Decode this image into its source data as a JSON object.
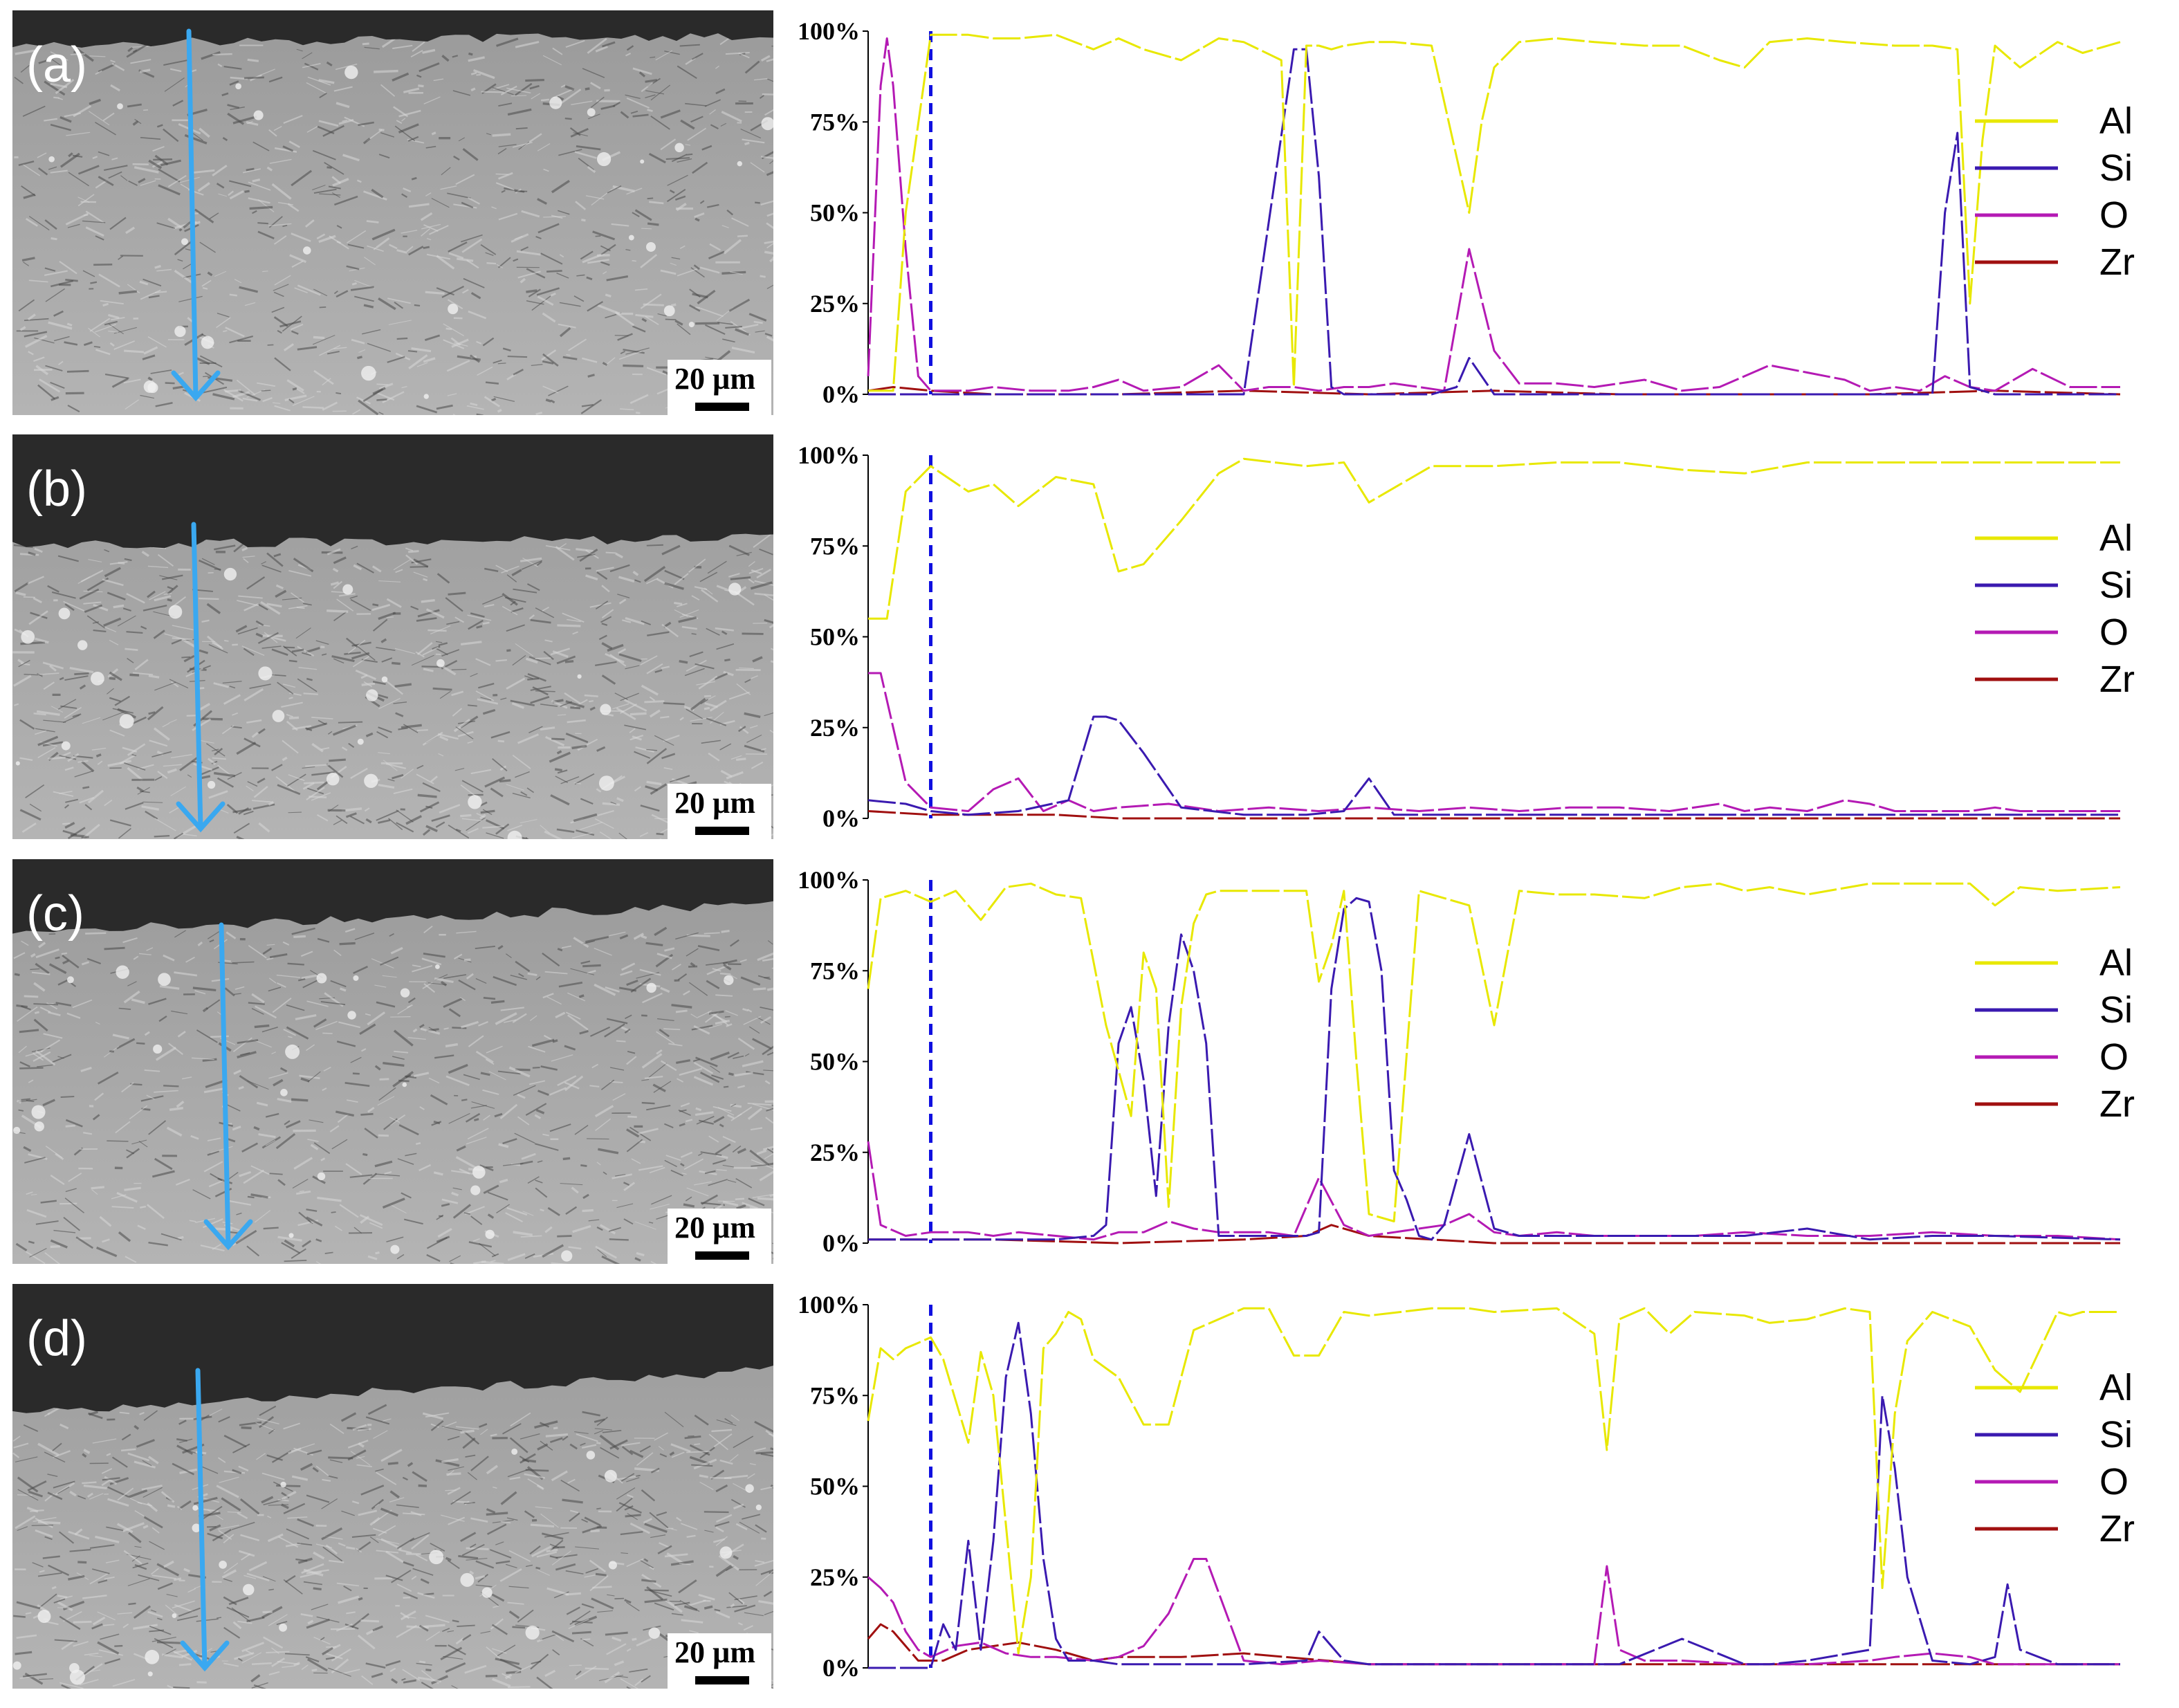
{
  "colors": {
    "Al": "#e8e800",
    "Si": "#3a1ab0",
    "O": "#b41ab4",
    "Zr": "#a01010",
    "arrow": "#3aa8f0",
    "boundary": "#1010e0"
  },
  "panels": [
    {
      "label": "(a)",
      "scale_bar": "20 µm"
    },
    {
      "label": "(b)",
      "scale_bar": "20 µm"
    },
    {
      "label": "(c)",
      "scale_bar": "20 µm"
    },
    {
      "label": "(d)",
      "scale_bar": "20 µm"
    }
  ],
  "chart_data": [
    {
      "type": "line",
      "panel": "(a)",
      "ylim": [
        0,
        100
      ],
      "yticks": [
        "0%",
        "25%",
        "50%",
        "75%",
        "100%"
      ],
      "xlim": [
        0,
        100
      ],
      "boundary_x": 5,
      "legend_position": "right",
      "series": [
        {
          "name": "Al",
          "x": [
            0,
            2,
            3,
            5,
            6,
            8,
            10,
            12,
            15,
            18,
            20,
            22,
            25,
            28,
            30,
            33,
            34,
            35,
            36,
            37,
            38,
            40,
            42,
            45,
            48,
            49,
            50,
            52,
            55,
            58,
            62,
            65,
            68,
            70,
            72,
            75,
            78,
            82,
            85,
            87,
            88,
            89,
            90,
            92,
            95,
            97,
            100
          ],
          "values": [
            1,
            1,
            50,
            99,
            99,
            99,
            98,
            98,
            99,
            95,
            98,
            95,
            92,
            98,
            97,
            92,
            2,
            96,
            96,
            95,
            96,
            97,
            97,
            96,
            50,
            75,
            90,
            97,
            98,
            97,
            96,
            96,
            92,
            90,
            97,
            98,
            97,
            96,
            96,
            95,
            25,
            70,
            96,
            90,
            97,
            94,
            97
          ]
        },
        {
          "name": "Si",
          "x": [
            0,
            5,
            10,
            20,
            30,
            34,
            35,
            36,
            37,
            38,
            40,
            45,
            46,
            47,
            48,
            50,
            55,
            60,
            70,
            80,
            85,
            86,
            87,
            88,
            90,
            95,
            100
          ],
          "values": [
            0,
            0,
            0,
            0,
            0,
            95,
            95,
            60,
            2,
            0,
            0,
            0,
            1,
            2,
            10,
            0,
            0,
            0,
            0,
            0,
            0,
            50,
            72,
            2,
            0,
            0,
            0
          ]
        },
        {
          "name": "O",
          "x": [
            0,
            1,
            1.5,
            2,
            3,
            4,
            5,
            8,
            10,
            13,
            16,
            18,
            20,
            22,
            25,
            28,
            30,
            32,
            34,
            36,
            38,
            40,
            42,
            44,
            46,
            48,
            50,
            52,
            55,
            58,
            62,
            65,
            68,
            70,
            72,
            75,
            78,
            80,
            82,
            84,
            86,
            88,
            90,
            93,
            96,
            100
          ],
          "values": [
            5,
            85,
            98,
            85,
            40,
            5,
            1,
            1,
            2,
            1,
            1,
            2,
            4,
            1,
            2,
            8,
            1,
            2,
            2,
            1,
            2,
            2,
            3,
            2,
            1,
            40,
            12,
            3,
            3,
            2,
            4,
            1,
            2,
            5,
            8,
            6,
            4,
            1,
            2,
            1,
            5,
            2,
            1,
            7,
            2,
            2
          ]
        },
        {
          "name": "Zr",
          "x": [
            0,
            2,
            5,
            10,
            20,
            30,
            40,
            50,
            60,
            70,
            80,
            90,
            100
          ],
          "values": [
            1,
            2,
            1,
            0,
            0,
            1,
            0,
            1,
            0,
            0,
            0,
            1,
            0
          ]
        }
      ]
    },
    {
      "type": "line",
      "panel": "(b)",
      "ylim": [
        0,
        100
      ],
      "yticks": [
        "0%",
        "25%",
        "50%",
        "75%",
        "100%"
      ],
      "xlim": [
        0,
        100
      ],
      "boundary_x": 5,
      "legend_position": "right",
      "series": [
        {
          "name": "Al",
          "x": [
            0,
            1.5,
            3,
            5,
            8,
            10,
            12,
            15,
            18,
            20,
            22,
            25,
            28,
            30,
            35,
            38,
            40,
            45,
            50,
            55,
            60,
            65,
            70,
            75,
            80,
            85,
            90,
            95,
            100
          ],
          "values": [
            55,
            55,
            90,
            97,
            90,
            92,
            86,
            94,
            92,
            68,
            70,
            82,
            95,
            99,
            97,
            98,
            87,
            97,
            97,
            98,
            98,
            96,
            95,
            98,
            98,
            98,
            98,
            98,
            98
          ]
        },
        {
          "name": "Si",
          "x": [
            0,
            3,
            5,
            8,
            12,
            16,
            18,
            19,
            20,
            22,
            25,
            30,
            35,
            38,
            40,
            42,
            45,
            50,
            60,
            70,
            80,
            90,
            100
          ],
          "values": [
            5,
            4,
            2,
            1,
            2,
            5,
            28,
            28,
            27,
            18,
            3,
            1,
            1,
            2,
            11,
            1,
            1,
            1,
            1,
            1,
            1,
            1,
            1
          ]
        },
        {
          "name": "O",
          "x": [
            0,
            1,
            3,
            5,
            8,
            10,
            12,
            14,
            16,
            18,
            20,
            24,
            28,
            32,
            36,
            40,
            44,
            48,
            52,
            56,
            60,
            64,
            68,
            70,
            72,
            75,
            78,
            80,
            82,
            85,
            88,
            90,
            92,
            95,
            100
          ],
          "values": [
            40,
            40,
            10,
            3,
            2,
            8,
            11,
            2,
            5,
            2,
            3,
            4,
            2,
            3,
            2,
            3,
            2,
            3,
            2,
            3,
            3,
            2,
            4,
            2,
            3,
            2,
            5,
            4,
            2,
            2,
            2,
            3,
            2,
            2,
            2
          ]
        },
        {
          "name": "Zr",
          "x": [
            0,
            5,
            10,
            15,
            20,
            30,
            40,
            50,
            60,
            70,
            80,
            90,
            100
          ],
          "values": [
            2,
            1,
            1,
            1,
            0,
            0,
            0,
            0,
            0,
            0,
            0,
            0,
            0
          ]
        }
      ]
    },
    {
      "type": "line",
      "panel": "(c)",
      "ylim": [
        0,
        100
      ],
      "yticks": [
        "0%",
        "25%",
        "50%",
        "75%",
        "100%"
      ],
      "xlim": [
        0,
        100
      ],
      "boundary_x": 5,
      "legend_position": "right",
      "series": [
        {
          "name": "Al",
          "x": [
            0,
            1,
            3,
            5,
            7,
            9,
            11,
            13,
            15,
            17,
            19,
            21,
            22,
            23,
            24,
            25,
            26,
            27,
            28,
            30,
            33,
            35,
            36,
            37,
            38,
            39,
            40,
            42,
            44,
            46,
            48,
            50,
            52,
            55,
            58,
            62,
            65,
            68,
            70,
            72,
            75,
            80,
            85,
            88,
            90,
            92,
            95,
            100
          ],
          "values": [
            70,
            95,
            97,
            94,
            97,
            89,
            98,
            99,
            96,
            95,
            60,
            35,
            80,
            70,
            10,
            65,
            88,
            96,
            97,
            97,
            97,
            97,
            72,
            82,
            97,
            50,
            8,
            6,
            97,
            95,
            93,
            60,
            97,
            96,
            96,
            95,
            98,
            99,
            97,
            98,
            96,
            99,
            99,
            99,
            93,
            98,
            97,
            98
          ]
        },
        {
          "name": "Si",
          "x": [
            0,
            5,
            10,
            15,
            18,
            19,
            20,
            21,
            22,
            23,
            24,
            25,
            26,
            27,
            28,
            30,
            35,
            36,
            37,
            38,
            39,
            40,
            41,
            42,
            43,
            44,
            45,
            46,
            48,
            50,
            52,
            55,
            60,
            70,
            75,
            80,
            85,
            90,
            100
          ],
          "values": [
            1,
            1,
            1,
            1,
            2,
            5,
            55,
            65,
            45,
            13,
            60,
            85,
            75,
            55,
            2,
            2,
            2,
            3,
            70,
            92,
            95,
            94,
            75,
            20,
            12,
            2,
            1,
            5,
            30,
            4,
            2,
            2,
            2,
            2,
            4,
            1,
            2,
            2,
            1
          ]
        },
        {
          "name": "O",
          "x": [
            0,
            1,
            3,
            5,
            8,
            10,
            12,
            15,
            18,
            20,
            22,
            24,
            26,
            28,
            30,
            32,
            34,
            36,
            38,
            40,
            42,
            44,
            46,
            48,
            50,
            52,
            55,
            58,
            62,
            66,
            70,
            75,
            80,
            85,
            90,
            95,
            100
          ],
          "values": [
            28,
            5,
            2,
            3,
            3,
            2,
            3,
            2,
            1,
            3,
            3,
            6,
            4,
            3,
            3,
            3,
            2,
            18,
            5,
            2,
            3,
            4,
            5,
            8,
            3,
            2,
            3,
            2,
            2,
            2,
            3,
            2,
            2,
            3,
            2,
            2,
            1
          ]
        },
        {
          "name": "Zr",
          "x": [
            0,
            10,
            20,
            30,
            35,
            37,
            40,
            45,
            50,
            60,
            70,
            80,
            90,
            100
          ],
          "values": [
            1,
            1,
            0,
            1,
            2,
            5,
            2,
            1,
            0,
            0,
            0,
            0,
            0,
            0
          ]
        }
      ]
    },
    {
      "type": "line",
      "panel": "(d)",
      "ylim": [
        0,
        100
      ],
      "yticks": [
        "0%",
        "25%",
        "50%",
        "75%",
        "100%"
      ],
      "xlim": [
        0,
        100
      ],
      "boundary_x": 5,
      "legend_position": "right",
      "series": [
        {
          "name": "Al",
          "x": [
            0,
            1,
            2,
            3,
            5,
            6,
            8,
            9,
            10,
            12,
            13,
            14,
            15,
            16,
            17,
            18,
            20,
            22,
            24,
            26,
            28,
            30,
            32,
            34,
            36,
            38,
            40,
            45,
            48,
            50,
            55,
            58,
            59,
            60,
            62,
            64,
            66,
            70,
            72,
            75,
            78,
            80,
            81,
            82,
            83,
            85,
            88,
            90,
            92,
            95,
            96,
            97,
            98,
            100
          ],
          "values": [
            68,
            88,
            85,
            88,
            91,
            85,
            62,
            87,
            75,
            4,
            25,
            88,
            92,
            98,
            96,
            85,
            80,
            67,
            67,
            93,
            96,
            99,
            99,
            86,
            86,
            98,
            97,
            99,
            99,
            98,
            99,
            92,
            60,
            96,
            99,
            92,
            98,
            97,
            95,
            96,
            99,
            98,
            22,
            70,
            90,
            98,
            94,
            82,
            76,
            98,
            97,
            98,
            98,
            98
          ]
        },
        {
          "name": "Si",
          "x": [
            0,
            5,
            6,
            7,
            8,
            9,
            10,
            11,
            12,
            13,
            14,
            15,
            16,
            17,
            18,
            20,
            22,
            30,
            35,
            36,
            37,
            38,
            40,
            45,
            50,
            60,
            65,
            70,
            72,
            75,
            80,
            81,
            82,
            83,
            85,
            88,
            90,
            91,
            92,
            95,
            100
          ],
          "values": [
            0,
            0,
            12,
            5,
            35,
            5,
            35,
            80,
            95,
            70,
            30,
            8,
            2,
            2,
            2,
            1,
            1,
            1,
            2,
            10,
            6,
            2,
            1,
            1,
            1,
            1,
            8,
            1,
            1,
            2,
            5,
            75,
            55,
            25,
            2,
            1,
            3,
            23,
            5,
            1,
            1
          ]
        },
        {
          "name": "O",
          "x": [
            0,
            1,
            2,
            3,
            4,
            5,
            7,
            9,
            11,
            13,
            15,
            18,
            20,
            22,
            24,
            26,
            27,
            30,
            33,
            36,
            40,
            44,
            48,
            58,
            59,
            60,
            62,
            65,
            70,
            75,
            80,
            82,
            85,
            88,
            90,
            92,
            95,
            100
          ],
          "values": [
            25,
            22,
            18,
            10,
            5,
            3,
            6,
            7,
            4,
            3,
            3,
            2,
            3,
            6,
            15,
            30,
            30,
            2,
            1,
            2,
            1,
            1,
            1,
            1,
            28,
            5,
            2,
            2,
            1,
            1,
            2,
            3,
            4,
            3,
            1,
            1,
            1,
            1
          ]
        },
        {
          "name": "Zr",
          "x": [
            0,
            1,
            2,
            3,
            4,
            6,
            8,
            10,
            12,
            15,
            18,
            20,
            25,
            30,
            40,
            50,
            60,
            70,
            80,
            90,
            100
          ],
          "values": [
            8,
            12,
            10,
            6,
            2,
            2,
            5,
            6,
            7,
            5,
            2,
            3,
            3,
            4,
            1,
            1,
            1,
            1,
            1,
            1,
            1
          ]
        }
      ]
    }
  ]
}
